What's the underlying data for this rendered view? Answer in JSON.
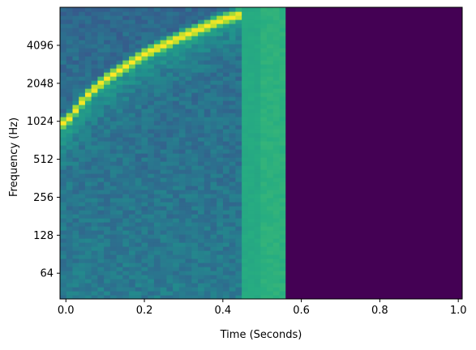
{
  "chart_data": {
    "type": "heatmap",
    "xlabel": "Time (Seconds)",
    "ylabel": "Frequency (Hz)",
    "xlim": [
      -0.015,
      1.01
    ],
    "y_scale": "log2",
    "ylim": [
      40,
      8200
    ],
    "x_ticks": [
      {
        "value": 0.0,
        "label": "0.0"
      },
      {
        "value": 0.2,
        "label": "0.2"
      },
      {
        "value": 0.4,
        "label": "0.4"
      },
      {
        "value": 0.6,
        "label": "0.6"
      },
      {
        "value": 0.8,
        "label": "0.8"
      },
      {
        "value": 1.0,
        "label": "1.0"
      }
    ],
    "y_ticks": [
      {
        "value": 64,
        "label": "64"
      },
      {
        "value": 128,
        "label": "128"
      },
      {
        "value": 256,
        "label": "256"
      },
      {
        "value": 512,
        "label": "512"
      },
      {
        "value": 1024,
        "label": "1024"
      },
      {
        "value": 2048,
        "label": "2048"
      },
      {
        "value": 4096,
        "label": "4096"
      }
    ],
    "colormap": "viridis",
    "silence_start_time": 0.56,
    "chirp_ridge": [
      {
        "time": 0.0,
        "frequency": 1000
      },
      {
        "time": 0.05,
        "frequency": 1600
      },
      {
        "time": 0.1,
        "frequency": 2200
      },
      {
        "time": 0.2,
        "frequency": 3500
      },
      {
        "time": 0.3,
        "frequency": 4900
      },
      {
        "time": 0.4,
        "frequency": 6600
      },
      {
        "time": 0.5,
        "frequency": 8000
      }
    ]
  }
}
